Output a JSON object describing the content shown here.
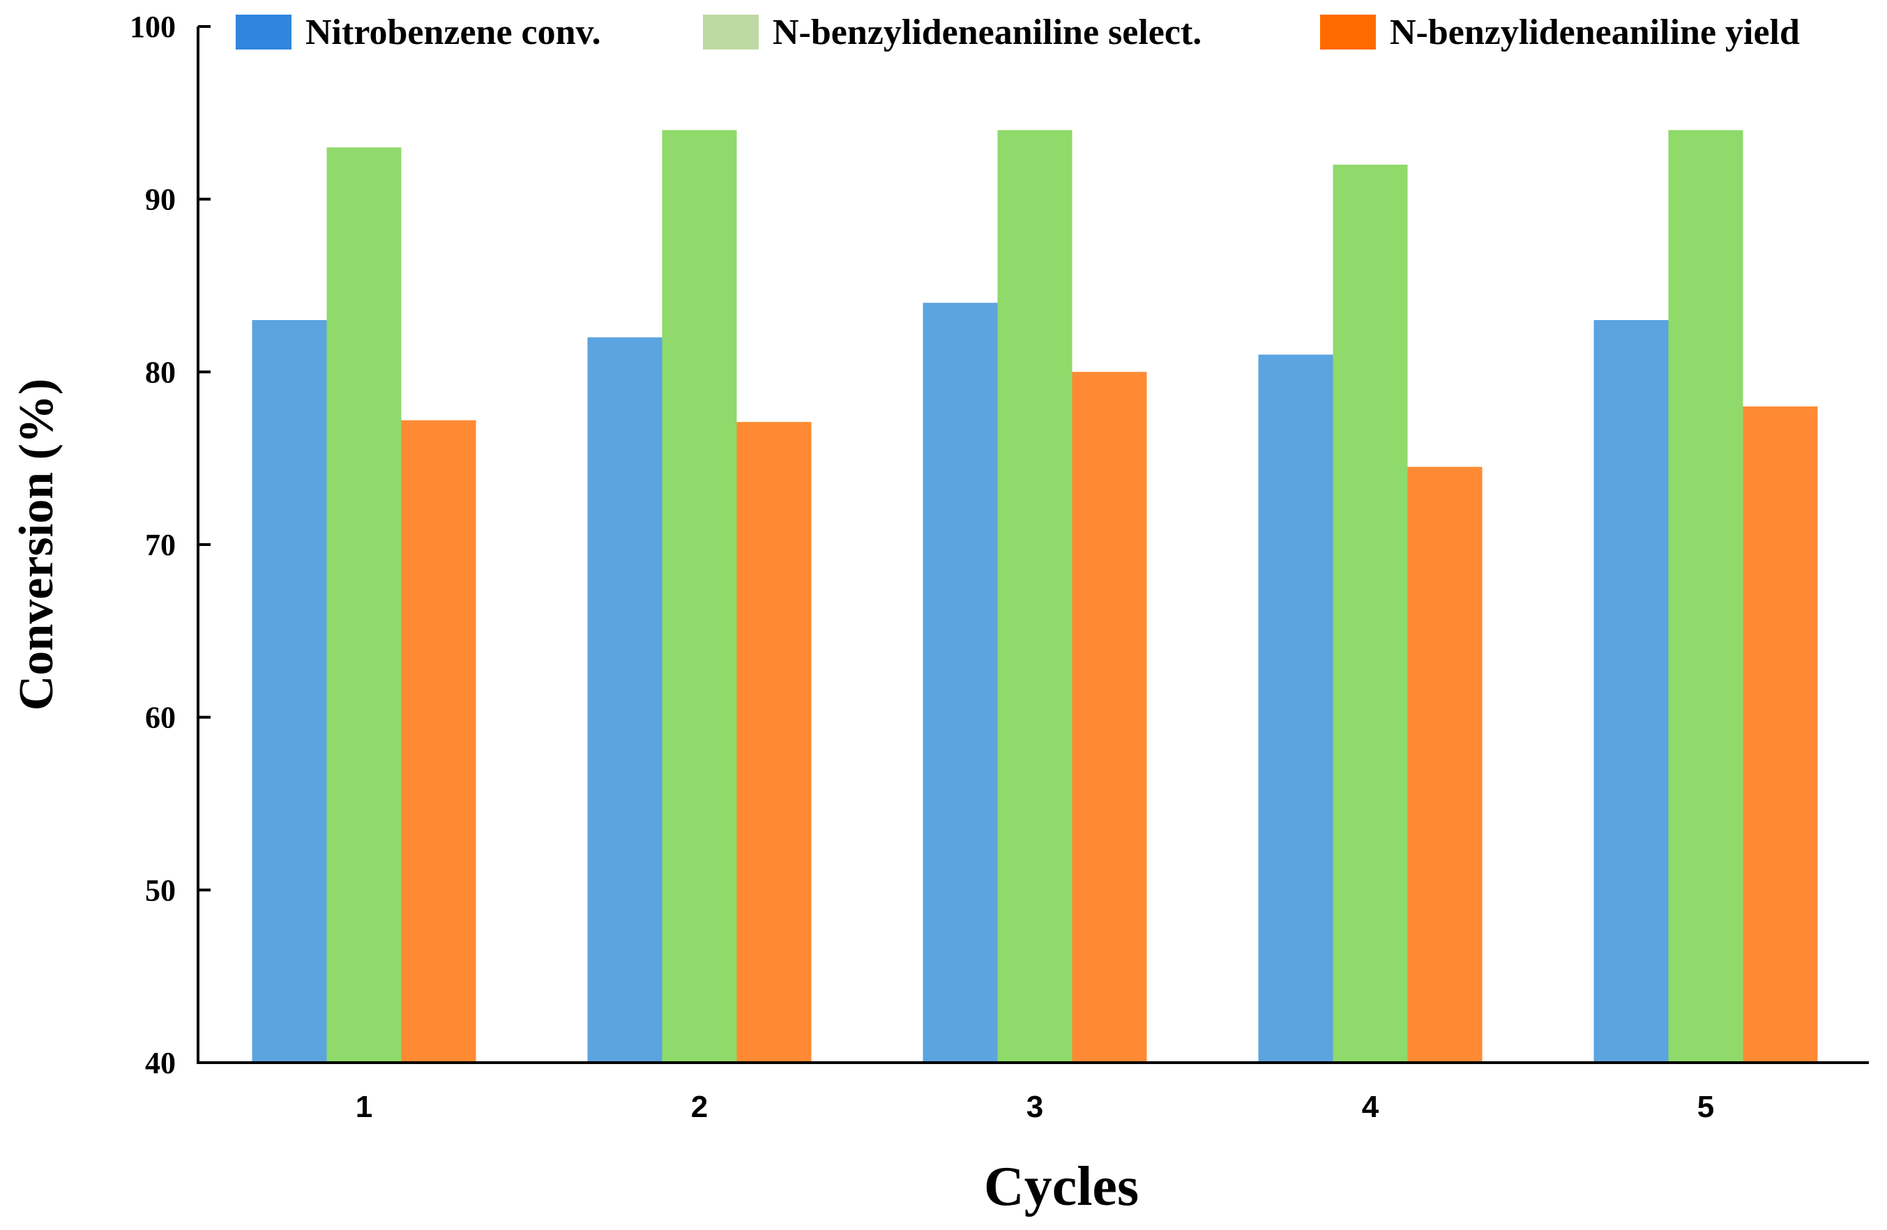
{
  "chart_data": {
    "type": "bar",
    "title": "",
    "xlabel": "Cycles",
    "ylabel": "Conversion (%)",
    "categories": [
      "1",
      "2",
      "3",
      "4",
      "5"
    ],
    "ylim": [
      40,
      100
    ],
    "yticks": [
      40,
      50,
      60,
      70,
      80,
      90,
      100
    ],
    "ytick_labels": [
      "40",
      "50",
      "60",
      "70",
      "80",
      "90",
      "100"
    ],
    "legend_position": "top",
    "series": [
      {
        "name": "Nitrobenzene conv.",
        "color": "#5BA4DF",
        "legend_color": "#2E86DE",
        "values": [
          83,
          82,
          84,
          81,
          83
        ]
      },
      {
        "name": "N-benzylideneaniline select.",
        "color": "#8FDA6A",
        "legend_color": "#BFD9A4",
        "values": [
          93,
          94,
          94,
          92,
          94
        ]
      },
      {
        "name": "N-benzylideneaniline yield",
        "color": "#FF8A33",
        "legend_color": "#FF6A00",
        "values": [
          77.2,
          77.1,
          80,
          74.5,
          78
        ]
      }
    ]
  }
}
